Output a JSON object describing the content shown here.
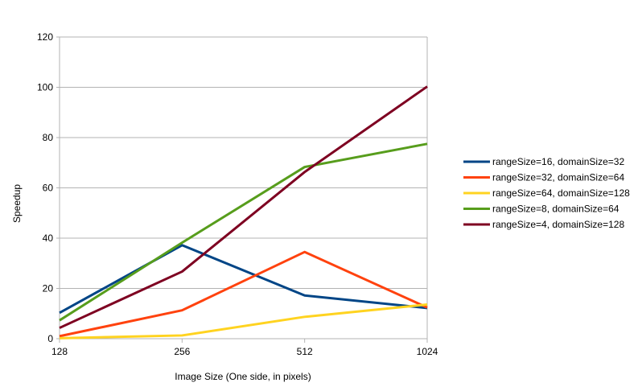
{
  "chart_data": {
    "type": "line",
    "title": "",
    "xlabel": "Image Size (One side, in pixels)",
    "ylabel": "Speedup",
    "categories": [
      "128",
      "256",
      "512",
      "1024"
    ],
    "ylim": [
      0,
      120
    ],
    "yticks": [
      0,
      20,
      40,
      60,
      80,
      100,
      120
    ],
    "grid": true,
    "legend_position": "right",
    "series": [
      {
        "name": "rangeSize=16, domainSize=32",
        "color": "#004586",
        "values": [
          10.3,
          37.2,
          17.2,
          12.2
        ]
      },
      {
        "name": "rangeSize=32, domainSize=64",
        "color": "#ff420e",
        "values": [
          1.0,
          11.3,
          34.5,
          12.4
        ]
      },
      {
        "name": "rangeSize=64, domainSize=128",
        "color": "#ffd320",
        "values": [
          0.2,
          1.3,
          8.7,
          13.6
        ]
      },
      {
        "name": "rangeSize=8, domainSize=64",
        "color": "#579d1c",
        "values": [
          7.3,
          38.2,
          68.3,
          77.5
        ]
      },
      {
        "name": "rangeSize=4, domainSize=128",
        "color": "#7e0021",
        "values": [
          4.3,
          26.7,
          66.3,
          100.3
        ]
      }
    ]
  }
}
